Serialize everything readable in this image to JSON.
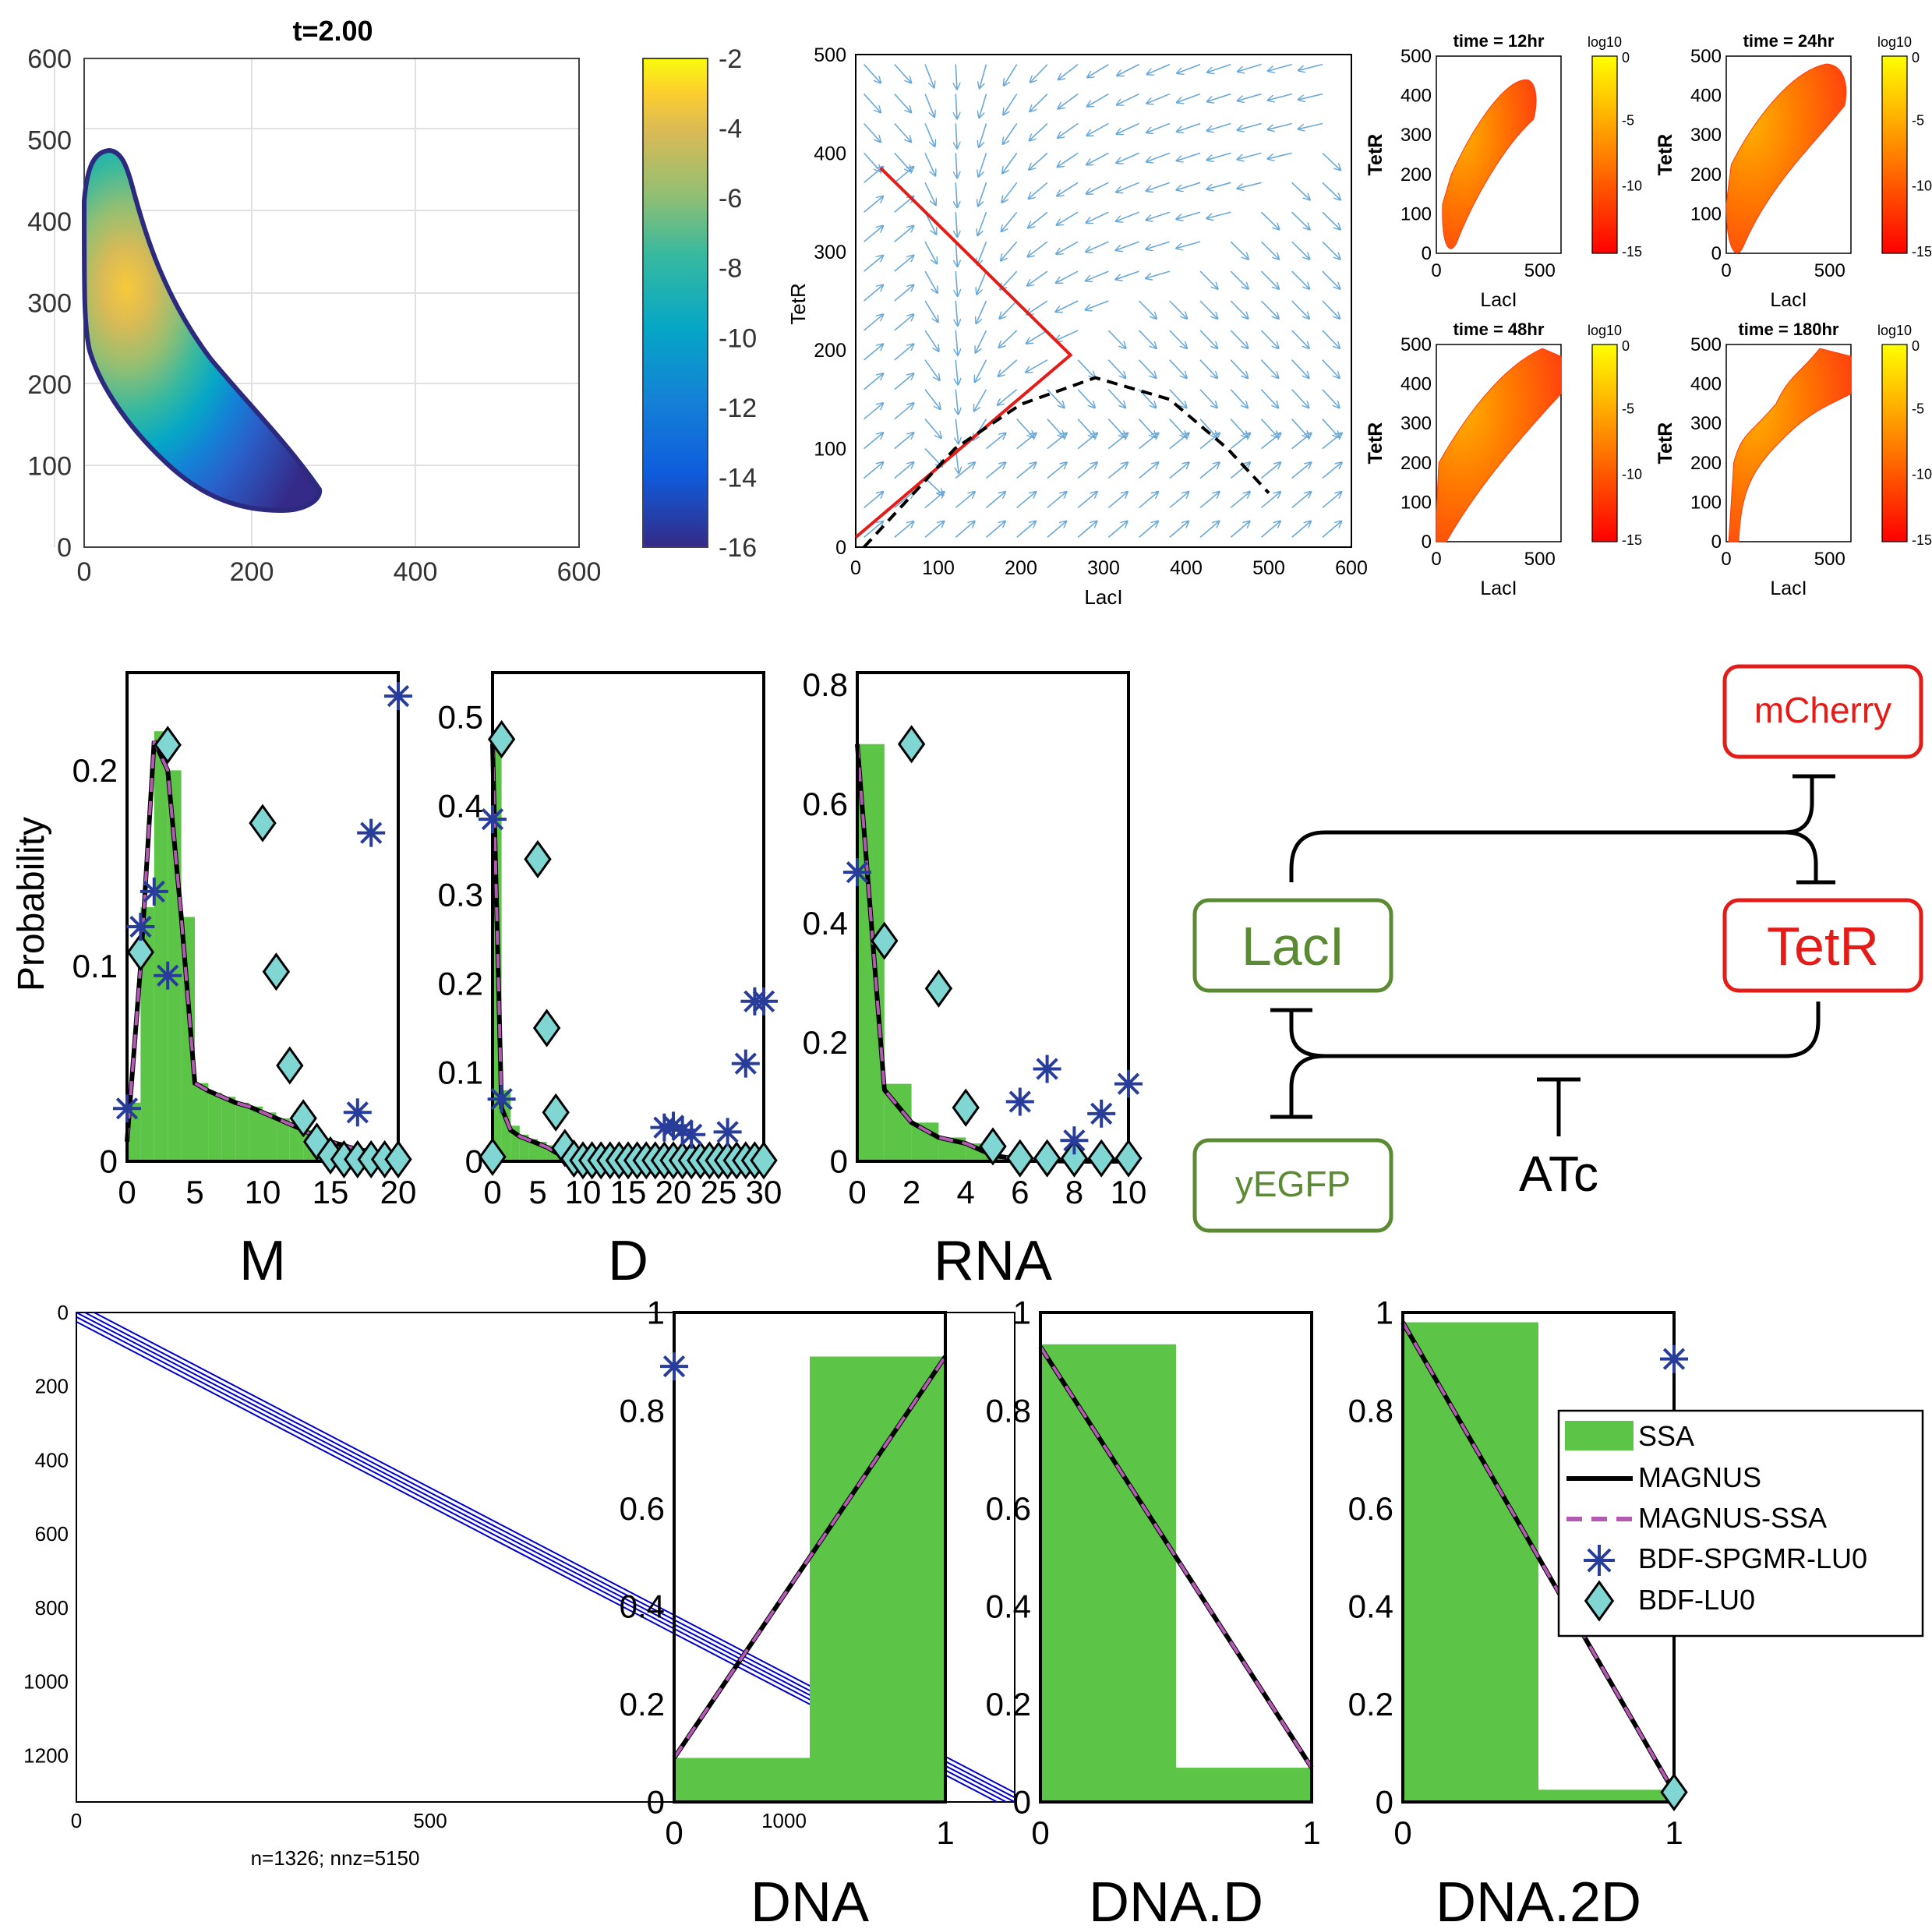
{
  "colors": {
    "ssa": "#5cc447",
    "magnus": "#000000",
    "magnus_ssa": "#b45ab4",
    "bdf_spgmr": "#283c9a",
    "bdf_lu0": "#7fd6d2",
    "quiver": "#6aa8d8",
    "trajectory": "#e51b17",
    "separatrix": "#000000",
    "circuit_green": "#5a8a32",
    "circuit_red": "#e41b17",
    "sparsity": "#0000cc"
  },
  "panel_a": {
    "title": "t=2.00",
    "xticks": [
      "0",
      "200",
      "400",
      "600"
    ],
    "yticks": [
      "0",
      "100",
      "200",
      "300",
      "400",
      "500",
      "600"
    ],
    "colorbar_ticks": [
      "-2",
      "-4",
      "-6",
      "-8",
      "-10",
      "-12",
      "-14",
      "-16"
    ]
  },
  "panel_b": {
    "xlabel": "LacI",
    "ylabel": "TetR",
    "xticks": [
      "0",
      "100",
      "200",
      "300",
      "400",
      "500",
      "600"
    ],
    "yticks": [
      "0",
      "100",
      "200",
      "300",
      "400",
      "500"
    ]
  },
  "panel_c": {
    "titles": [
      "time = 12hr",
      "time = 24hr",
      "time = 48hr",
      "time = 180hr"
    ],
    "xlabel": "LacI",
    "ylabel": "TetR",
    "colorbar_label": "log10",
    "colorbar_ticks": [
      "0",
      "-5",
      "-10",
      "-15"
    ],
    "xticks": [
      "0",
      "500"
    ],
    "yticks": [
      "0",
      "100",
      "200",
      "300",
      "400",
      "500"
    ]
  },
  "circuit": {
    "nodes": [
      "mCherry",
      "LacI",
      "TetR",
      "yEGFP",
      "ATc"
    ]
  },
  "sparsity": {
    "caption": "n=1326;  nnz=5150",
    "xticks": [
      "0",
      "500",
      "1000"
    ],
    "yticks": [
      "0",
      "200",
      "400",
      "600",
      "800",
      "1000",
      "1200"
    ]
  },
  "legend": {
    "ssa": "SSA",
    "magnus": "MAGNUS",
    "magnus_ssa": "MAGNUS-SSA",
    "bdf_spgmr": "BDF-SPGMR-LU0",
    "bdf_lu0": "BDF-LU0"
  },
  "chart_data": [
    {
      "type": "heatmap",
      "title": "t=2.00",
      "xlim": [
        0,
        600
      ],
      "ylim": [
        0,
        600
      ],
      "colorbar_range": [
        -16,
        -2
      ],
      "note_values": "log10 probability on LacI x TetR grid; support is a curved band from (0,460) to (280,60), peak near (30,300)"
    },
    {
      "type": "line",
      "subtype": "phase-portrait",
      "xlabel": "LacI",
      "ylabel": "TetR",
      "xlim": [
        0,
        600
      ],
      "ylim": [
        0,
        500
      ],
      "series": [
        {
          "x": [
            0,
            260,
            30
          ],
          "y": [
            10,
            195,
            385
          ]
        },
        {
          "x": [
            10,
            120,
            200,
            290,
            380,
            450,
            500
          ],
          "y": [
            0,
            100,
            145,
            172,
            150,
            100,
            55
          ]
        }
      ]
    },
    {
      "type": "heatmap",
      "titles": [
        "time = 12hr",
        "time = 24hr",
        "time = 48hr",
        "time = 180hr"
      ],
      "xlim": [
        0,
        600
      ],
      "ylim": [
        0,
        500
      ],
      "colorbar_range": [
        -15,
        0
      ]
    },
    {
      "type": "bar",
      "xlabel": "M",
      "ylabel": "Probability",
      "xlim": [
        0,
        20
      ],
      "ylim": [
        0,
        0.25
      ],
      "ssa": {
        "x": [
          0,
          1,
          2,
          3,
          4,
          5,
          6,
          7,
          8,
          9,
          10,
          11,
          12,
          13,
          14,
          15,
          16,
          17,
          18,
          19,
          20
        ],
        "values": [
          0.03,
          0.13,
          0.22,
          0.2,
          0.125,
          0.04,
          0.035,
          0.033,
          0.03,
          0.028,
          0.025,
          0.022,
          0.02,
          0.016,
          0.012,
          0.01,
          0.008,
          0.006,
          0.005,
          0.004,
          0.003
        ]
      },
      "series": [
        {
          "name": "MAGNUS",
          "x": [
            0,
            1,
            2,
            3,
            4,
            5,
            6,
            7,
            8,
            9,
            10,
            11,
            12,
            13,
            14,
            15,
            16,
            17,
            18,
            19,
            20
          ],
          "values": [
            0.01,
            0.1,
            0.215,
            0.2,
            0.125,
            0.04,
            0.036,
            0.033,
            0.03,
            0.028,
            0.025,
            0.022,
            0.019,
            0.016,
            0.012,
            0.01,
            0.008,
            0.006,
            0.005,
            0.004,
            0.003
          ]
        },
        {
          "name": "MAGNUS-SSA",
          "x": [
            0,
            1,
            2,
            3,
            4,
            5,
            6,
            7,
            8,
            9,
            10,
            11,
            12,
            13,
            14,
            15,
            16,
            17,
            18,
            19,
            20
          ],
          "values": [
            0.01,
            0.1,
            0.215,
            0.2,
            0.125,
            0.04,
            0.036,
            0.033,
            0.03,
            0.028,
            0.025,
            0.022,
            0.019,
            0.016,
            0.012,
            0.01,
            0.008,
            0.006,
            0.005,
            0.004,
            0.003
          ]
        },
        {
          "name": "BDF-SPGMR-LU0",
          "x": [
            0,
            1,
            2,
            3,
            17,
            18,
            20
          ],
          "values": [
            0.027,
            0.12,
            0.138,
            0.095,
            0.025,
            0.168,
            0.238
          ]
        },
        {
          "name": "BDF-LU0",
          "x": [
            1,
            3,
            10,
            11,
            12,
            13,
            14,
            15,
            16,
            17,
            18,
            19,
            20
          ],
          "values": [
            0.107,
            0.213,
            0.173,
            0.097,
            0.049,
            0.022,
            0.01,
            0.003,
            0.001,
            0.001,
            0.001,
            0.001,
            0.001
          ]
        }
      ]
    },
    {
      "type": "bar",
      "xlabel": "D",
      "xlim": [
        0,
        30
      ],
      "ylim": [
        0,
        0.55
      ],
      "ssa": {
        "x": [
          0,
          1,
          2,
          3,
          4,
          5,
          6,
          7,
          8
        ],
        "values": [
          0.47,
          0.08,
          0.04,
          0.03,
          0.025,
          0.022,
          0.018,
          0.01,
          0.003
        ]
      },
      "series": [
        {
          "name": "MAGNUS",
          "x": [
            0,
            1,
            2,
            3,
            4,
            5,
            6,
            7,
            8,
            10,
            15,
            20,
            25,
            30
          ],
          "values": [
            0.47,
            0.06,
            0.035,
            0.028,
            0.024,
            0.02,
            0.016,
            0.01,
            0.004,
            0.001,
            0,
            0,
            0,
            0
          ]
        },
        {
          "name": "MAGNUS-SSA",
          "x": [
            0,
            1,
            2,
            3,
            4,
            5,
            6,
            7,
            8,
            10,
            15,
            20,
            25,
            30
          ],
          "values": [
            0.47,
            0.06,
            0.035,
            0.028,
            0.024,
            0.02,
            0.016,
            0.01,
            0.004,
            0.001,
            0,
            0,
            0,
            0
          ]
        },
        {
          "name": "BDF-SPGMR-LU0",
          "x": [
            0,
            1,
            19,
            20,
            21,
            22,
            26,
            28,
            29,
            30
          ],
          "values": [
            0.385,
            0.07,
            0.038,
            0.04,
            0.035,
            0.03,
            0.033,
            0.11,
            0.18,
            0.18
          ]
        },
        {
          "name": "BDF-LU0",
          "x": [
            0,
            1,
            5,
            6,
            7,
            8,
            9,
            10,
            11,
            12,
            13,
            14,
            15,
            16,
            17,
            18,
            19,
            20,
            21,
            22,
            23,
            24,
            25,
            26,
            27,
            28,
            29,
            30
          ],
          "values": [
            0.005,
            0.475,
            0.34,
            0.15,
            0.055,
            0.015,
            0.003,
            0.001,
            0.001,
            0.001,
            0.001,
            0.001,
            0.001,
            0.001,
            0.001,
            0.001,
            0.001,
            0.001,
            0.001,
            0.001,
            0.001,
            0.001,
            0.001,
            0.001,
            0.001,
            0.001,
            0.001,
            0.001
          ]
        }
      ]
    },
    {
      "type": "bar",
      "xlabel": "RNA",
      "xlim": [
        0,
        10
      ],
      "ylim": [
        0,
        0.82
      ],
      "ssa": {
        "x": [
          0,
          1,
          2,
          3,
          4,
          5
        ],
        "values": [
          0.7,
          0.13,
          0.065,
          0.04,
          0.03,
          0.01
        ]
      },
      "series": [
        {
          "name": "MAGNUS",
          "x": [
            0,
            1,
            2,
            3,
            4,
            5,
            6,
            7,
            8,
            9,
            10
          ],
          "values": [
            0.7,
            0.12,
            0.065,
            0.04,
            0.03,
            0.01,
            0.003,
            0.001,
            0,
            0,
            0
          ]
        },
        {
          "name": "MAGNUS-SSA",
          "x": [
            0,
            1,
            2,
            3,
            4,
            5,
            6,
            7,
            8,
            9,
            10
          ],
          "values": [
            0.7,
            0.12,
            0.065,
            0.04,
            0.03,
            0.01,
            0.003,
            0.001,
            0,
            0,
            0
          ]
        },
        {
          "name": "BDF-SPGMR-LU0",
          "x": [
            0,
            6,
            7,
            8,
            9,
            10
          ],
          "values": [
            0.485,
            0.1,
            0.155,
            0.035,
            0.08,
            0.13
          ]
        },
        {
          "name": "BDF-LU0",
          "x": [
            1,
            2,
            3,
            4,
            5,
            6,
            7,
            8,
            9,
            10
          ],
          "values": [
            0.37,
            0.7,
            0.29,
            0.09,
            0.025,
            0.005,
            0.005,
            0.005,
            0.005,
            0.005
          ]
        }
      ]
    },
    {
      "type": "scatter",
      "subtype": "sparsity",
      "n": 1326,
      "nnz": 5150,
      "xlim": [
        0,
        1326
      ],
      "ylim": [
        1326,
        0
      ]
    },
    {
      "type": "bar",
      "xlabel": "DNA",
      "xlim": [
        0,
        1
      ],
      "ylim": [
        0,
        1
      ],
      "ssa": {
        "x": [
          0,
          1
        ],
        "values": [
          0.09,
          0.91
        ]
      },
      "series": [
        {
          "name": "MAGNUS",
          "x": [
            0,
            1
          ],
          "values": [
            0.09,
            0.91
          ]
        },
        {
          "name": "MAGNUS-SSA",
          "x": [
            0,
            1
          ],
          "values": [
            0.09,
            0.91
          ]
        },
        {
          "name": "BDF-SPGMR-LU0",
          "x": [
            0
          ],
          "values": [
            0.89
          ]
        }
      ]
    },
    {
      "type": "bar",
      "xlabel": "DNA.D",
      "xlim": [
        0,
        1
      ],
      "ylim": [
        0,
        1
      ],
      "ssa": {
        "x": [
          0,
          1
        ],
        "values": [
          0.935,
          0.07
        ]
      },
      "series": [
        {
          "name": "MAGNUS",
          "x": [
            0,
            1
          ],
          "values": [
            0.93,
            0.07
          ]
        },
        {
          "name": "MAGNUS-SSA",
          "x": [
            0,
            1
          ],
          "values": [
            0.93,
            0.07
          ]
        }
      ]
    },
    {
      "type": "bar",
      "xlabel": "DNA.2D",
      "xlim": [
        0,
        1
      ],
      "ylim": [
        0,
        1
      ],
      "ssa": {
        "x": [
          0,
          1
        ],
        "values": [
          0.98,
          0.025
        ]
      },
      "series": [
        {
          "name": "MAGNUS",
          "x": [
            0,
            1
          ],
          "values": [
            0.98,
            0.02
          ]
        },
        {
          "name": "MAGNUS-SSA",
          "x": [
            0,
            1
          ],
          "values": [
            0.98,
            0.02
          ]
        },
        {
          "name": "BDF-SPGMR-LU0",
          "x": [
            1
          ],
          "values": [
            0.905
          ]
        },
        {
          "name": "BDF-LU0",
          "x": [
            1
          ],
          "values": [
            0.02
          ]
        }
      ]
    }
  ]
}
